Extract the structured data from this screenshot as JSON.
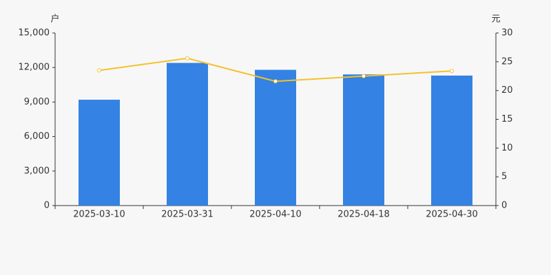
{
  "chart_data": {
    "type": "bar-line",
    "y_label": "户",
    "y2_label": "元",
    "categories": [
      "2025-03-10",
      "2025-03-31",
      "2025-04-10",
      "2025-04-18",
      "2025-04-30"
    ],
    "series": [
      {
        "type": "bar",
        "color": "#3482e3",
        "values": [
          9200,
          12400,
          11800,
          11400,
          11300
        ]
      },
      {
        "type": "line",
        "axis": "y2",
        "color": "#f5c12a",
        "values": [
          23.5,
          25.6,
          21.6,
          22.5,
          23.4
        ]
      }
    ],
    "ylim": [
      0,
      15000
    ],
    "yticks": [
      0,
      {
        "value": 3000,
        "label": "3,000"
      },
      {
        "value": 6000,
        "label": "6,000"
      },
      {
        "value": 9000,
        "label": "9,000"
      },
      {
        "value": 12000,
        "label": "12,000"
      },
      {
        "value": 15000,
        "label": "15,000"
      }
    ],
    "y2lim": [
      0,
      30
    ],
    "y2ticks": [
      0,
      5,
      10,
      15,
      20,
      25,
      30
    ]
  }
}
